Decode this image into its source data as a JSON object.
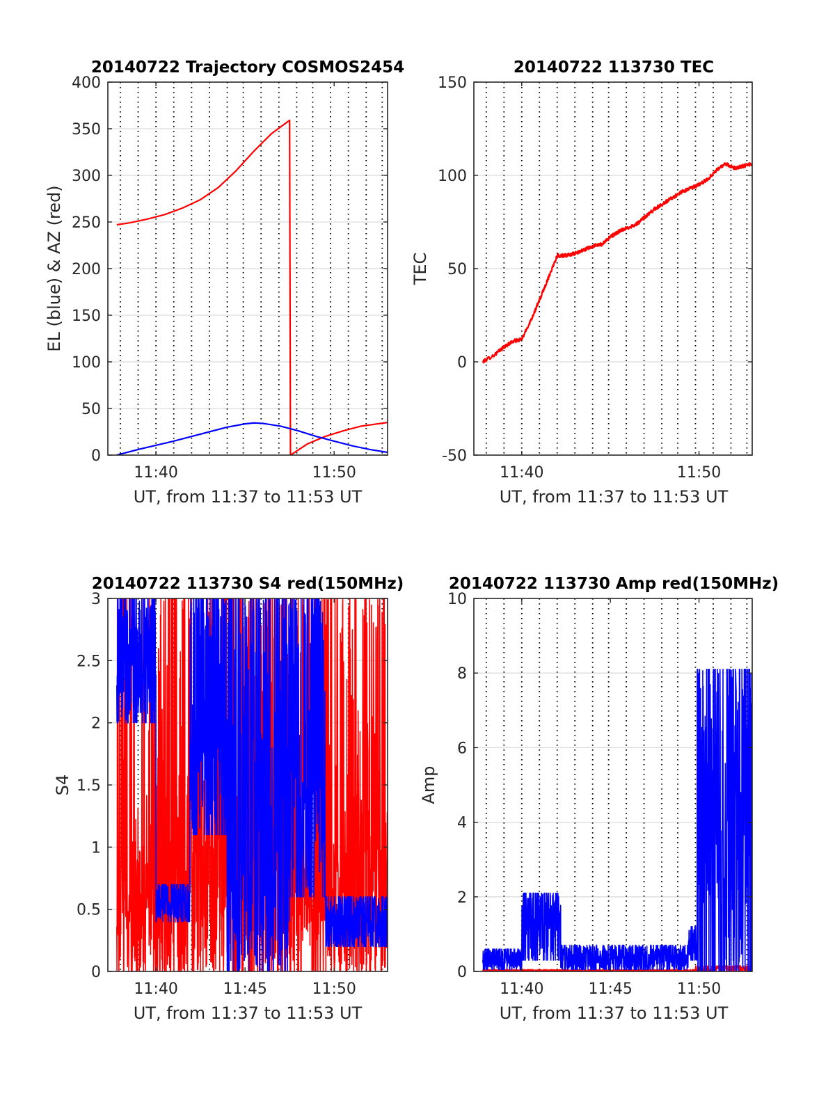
{
  "chart_data": [
    {
      "id": "traj",
      "type": "line",
      "title": "20140722 Trajectory COSMOS2454",
      "xlabel": "UT, from 11:37 to 11:53 UT",
      "ylabel": "EL (blue) & AZ (red)",
      "xlim": [
        37.3,
        53.0
      ],
      "ylim": [
        0,
        400
      ],
      "yticks": [
        0,
        50,
        100,
        150,
        200,
        250,
        300,
        350,
        400
      ],
      "xtick_labels": [
        {
          "minute": 40,
          "label": "11:40"
        },
        {
          "minute": 50,
          "label": "11:50"
        }
      ],
      "grid": true,
      "series": [
        {
          "color": "#ff0000",
          "kind": "smooth",
          "points": [
            [
              37.8,
              247
            ],
            [
              38.5,
              249
            ],
            [
              39.5,
              253
            ],
            [
              40.5,
              258
            ],
            [
              41.5,
              265
            ],
            [
              42.5,
              274
            ],
            [
              43.5,
              287
            ],
            [
              44.5,
              305
            ],
            [
              45.5,
              326
            ],
            [
              46.5,
              345
            ],
            [
              47.5,
              359
            ],
            [
              47.55,
              0
            ],
            [
              48.5,
              12
            ],
            [
              49.5,
              20
            ],
            [
              50.5,
              26
            ],
            [
              51.5,
              31
            ],
            [
              53.0,
              35
            ]
          ]
        },
        {
          "color": "#0000ff",
          "kind": "smooth",
          "points": [
            [
              37.8,
              0
            ],
            [
              39.0,
              6
            ],
            [
              40.0,
              10.5
            ],
            [
              41.0,
              15
            ],
            [
              42.0,
              20
            ],
            [
              43.0,
              25
            ],
            [
              44.0,
              30
            ],
            [
              45.0,
              33.5
            ],
            [
              45.5,
              34.5
            ],
            [
              46.0,
              34
            ],
            [
              47.0,
              31
            ],
            [
              48.0,
              26
            ],
            [
              49.0,
              20
            ],
            [
              50.0,
              15
            ],
            [
              51.0,
              10
            ],
            [
              52.0,
              6
            ],
            [
              53.0,
              3
            ]
          ]
        }
      ]
    },
    {
      "id": "tec",
      "type": "line",
      "title": "20140722 113730 TEC",
      "xlabel": "UT, from 11:37 to 11:53 UT",
      "ylabel": "TEC",
      "xlim": [
        37.3,
        53.0
      ],
      "ylim": [
        -50,
        150
      ],
      "yticks": [
        -50,
        0,
        50,
        100,
        150
      ],
      "xtick_labels": [
        {
          "minute": 40,
          "label": "11:40"
        },
        {
          "minute": 50,
          "label": "11:50"
        }
      ],
      "grid": true,
      "series": [
        {
          "color": "#ff0000",
          "kind": "noisy",
          "noise": 1.0,
          "points": [
            [
              37.8,
              0
            ],
            [
              38.5,
              4
            ],
            [
              39.0,
              8
            ],
            [
              39.5,
              11
            ],
            [
              40.0,
              12
            ],
            [
              40.5,
              22
            ],
            [
              41.0,
              33
            ],
            [
              41.5,
              45
            ],
            [
              42.0,
              57
            ],
            [
              42.5,
              57
            ],
            [
              43.0,
              58
            ],
            [
              43.5,
              60
            ],
            [
              44.0,
              62
            ],
            [
              44.5,
              63
            ],
            [
              45.0,
              67
            ],
            [
              45.5,
              70
            ],
            [
              46.0,
              72
            ],
            [
              46.5,
              74
            ],
            [
              47.0,
              78
            ],
            [
              47.5,
              82
            ],
            [
              48.0,
              85
            ],
            [
              48.5,
              88
            ],
            [
              49.0,
              91
            ],
            [
              49.5,
              93
            ],
            [
              50.0,
              95
            ],
            [
              50.5,
              98
            ],
            [
              51.0,
              103
            ],
            [
              51.5,
              106
            ],
            [
              52.0,
              104
            ],
            [
              52.5,
              105
            ],
            [
              53.0,
              106
            ]
          ]
        }
      ]
    },
    {
      "id": "s4",
      "type": "line",
      "title": "20140722 113730 S4 red(150MHz)",
      "xlabel": "UT, from 11:37 to 11:53 UT",
      "ylabel": "S4",
      "xlim": [
        37.3,
        53.0
      ],
      "ylim": [
        0,
        3
      ],
      "yticks": [
        0,
        0.5,
        1,
        1.5,
        2,
        2.5,
        3
      ],
      "xtick_labels": [
        {
          "minute": 40,
          "label": "11:40"
        },
        {
          "minute": 45,
          "label": "11:45"
        },
        {
          "minute": 50,
          "label": "11:50"
        }
      ],
      "grid": true,
      "series": [
        {
          "color": "#ff0000",
          "kind": "spiky",
          "segments": [
            {
              "from": 37.8,
              "to": 40.0,
              "low": 0,
              "high": 3,
              "density": 0.45
            },
            {
              "from": 40.0,
              "to": 42.5,
              "low": 0,
              "high": 3,
              "density": 0.6
            },
            {
              "from": 42.5,
              "to": 47.0,
              "low": 0,
              "high": 3,
              "density": 0.7
            },
            {
              "from": 47.0,
              "to": 49.5,
              "low": 0,
              "high": 3,
              "density": 0.6
            },
            {
              "from": 49.5,
              "to": 53.0,
              "low": 0,
              "high": 3,
              "density": 0.5
            }
          ]
        },
        {
          "color": "#0000ff",
          "kind": "spiky",
          "segments": [
            {
              "from": 37.8,
              "to": 40.0,
              "low": 2.0,
              "high": 3,
              "density": 0.9
            },
            {
              "from": 40.0,
              "to": 41.9,
              "low": 0.4,
              "high": 0.7,
              "density": 1.0
            },
            {
              "from": 41.9,
              "to": 44.0,
              "low": 1.1,
              "high": 3,
              "density": 0.9
            },
            {
              "from": 44.0,
              "to": 47.5,
              "low": 0,
              "high": 3,
              "density": 0.8
            },
            {
              "from": 47.5,
              "to": 49.5,
              "low": 0.6,
              "high": 3,
              "density": 0.8
            },
            {
              "from": 49.5,
              "to": 53.0,
              "low": 0.2,
              "high": 0.6,
              "density": 1.0
            }
          ]
        }
      ]
    },
    {
      "id": "amp",
      "type": "line",
      "title": "20140722 113730 Amp red(150MHz)",
      "xlabel": "UT, from 11:37 to 11:53 UT",
      "ylabel": "Amp",
      "xlim": [
        37.3,
        53.0
      ],
      "ylim": [
        0,
        10
      ],
      "yticks": [
        0,
        2,
        4,
        6,
        8,
        10
      ],
      "xtick_labels": [
        {
          "minute": 40,
          "label": "11:40"
        },
        {
          "minute": 45,
          "label": "11:45"
        },
        {
          "minute": 50,
          "label": "11:50"
        }
      ],
      "grid": true,
      "series": [
        {
          "color": "#ff0000",
          "kind": "spiky",
          "segments": [
            {
              "from": 37.8,
              "to": 49.8,
              "low": 0,
              "high": 0.05,
              "density": 1.0
            },
            {
              "from": 49.8,
              "to": 53.0,
              "low": 0,
              "high": 0.15,
              "density": 1.0
            }
          ]
        },
        {
          "color": "#0000ff",
          "kind": "spiky",
          "segments": [
            {
              "from": 37.8,
              "to": 40.0,
              "low": 0.05,
              "high": 0.6,
              "density": 1.0
            },
            {
              "from": 40.0,
              "to": 42.2,
              "low": 0.3,
              "high": 2.1,
              "density": 1.0
            },
            {
              "from": 42.2,
              "to": 49.4,
              "low": 0.05,
              "high": 0.7,
              "density": 1.0
            },
            {
              "from": 49.4,
              "to": 49.9,
              "low": 0.3,
              "high": 1.2,
              "density": 1.0
            },
            {
              "from": 49.9,
              "to": 53.0,
              "low": 0.0,
              "high": 8.1,
              "density": 1.0
            }
          ]
        }
      ]
    }
  ]
}
